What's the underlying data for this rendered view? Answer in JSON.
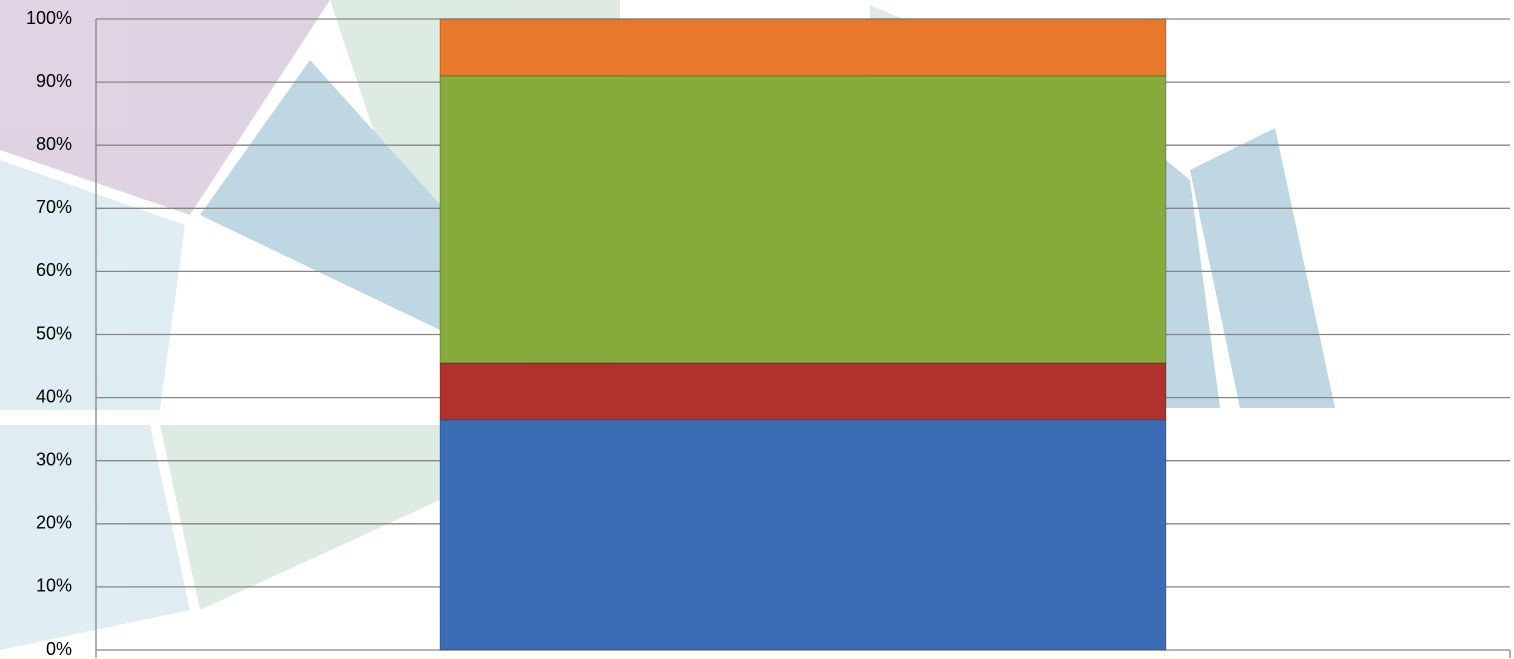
{
  "chart_data": {
    "type": "stacked-bar",
    "categories": [
      null
    ],
    "series": [
      {
        "color": "#3a6db5",
        "values": [
          36.5
        ]
      },
      {
        "color": "#b0322f",
        "values": [
          9
        ]
      },
      {
        "color": "#86aa3c",
        "values": [
          45.5
        ]
      },
      {
        "color": "#e8782a",
        "values": [
          9
        ]
      }
    ],
    "ylim": [
      0,
      100
    ],
    "yticks": [
      {
        "value": 0,
        "label": "0%"
      },
      {
        "value": 10,
        "label": "10%"
      },
      {
        "value": 20,
        "label": "20%"
      },
      {
        "value": 30,
        "label": "30%"
      },
      {
        "value": 40,
        "label": "40%"
      },
      {
        "value": 50,
        "label": "50%"
      },
      {
        "value": 60,
        "label": "60%"
      },
      {
        "value": 70,
        "label": "70%"
      },
      {
        "value": 80,
        "label": "80%"
      },
      {
        "value": 90,
        "label": "90%"
      },
      {
        "value": 100,
        "label": "100%"
      }
    ],
    "grid": true
  }
}
